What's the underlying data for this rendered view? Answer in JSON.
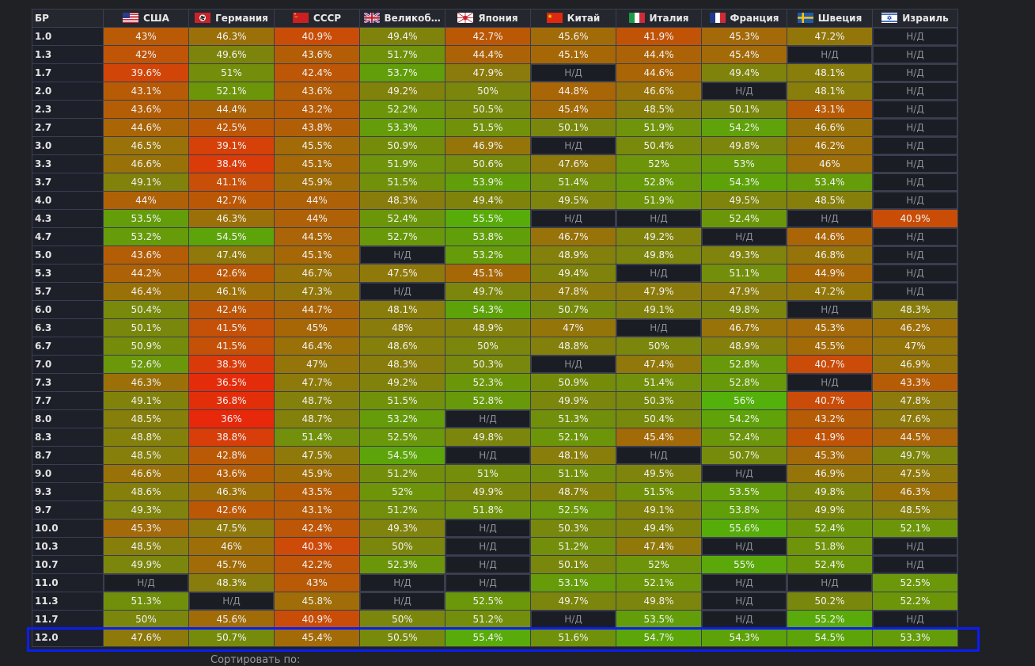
{
  "table": {
    "br_header": "БР",
    "na_text": "Н/Д",
    "countries": [
      {
        "name": "США",
        "flag": "usa-flag-icon"
      },
      {
        "name": "Германия",
        "flag": "germany-flag-icon"
      },
      {
        "name": "СССР",
        "flag": "ussr-flag-icon"
      },
      {
        "name": "Великобритания",
        "flag": "uk-flag-icon"
      },
      {
        "name": "Япония",
        "flag": "japan-flag-icon"
      },
      {
        "name": "Китай",
        "flag": "china-flag-icon"
      },
      {
        "name": "Италия",
        "flag": "italy-flag-icon"
      },
      {
        "name": "Франция",
        "flag": "france-flag-icon"
      },
      {
        "name": "Швеция",
        "flag": "sweden-flag-icon"
      },
      {
        "name": "Израиль",
        "flag": "israel-flag-icon"
      }
    ],
    "rows": [
      {
        "br": "1.0",
        "values": [
          "43%",
          "46.3%",
          "40.9%",
          "49.4%",
          "42.7%",
          "45.6%",
          "41.9%",
          "45.3%",
          "47.2%",
          "Н/Д"
        ]
      },
      {
        "br": "1.3",
        "values": [
          "42%",
          "49.6%",
          "43.6%",
          "51.7%",
          "44.4%",
          "45.1%",
          "44.4%",
          "45.4%",
          "Н/Д",
          "Н/Д"
        ]
      },
      {
        "br": "1.7",
        "values": [
          "39.6%",
          "51%",
          "42.4%",
          "53.7%",
          "47.9%",
          "Н/Д",
          "44.6%",
          "49.4%",
          "48.1%",
          "Н/Д"
        ]
      },
      {
        "br": "2.0",
        "values": [
          "43.1%",
          "52.1%",
          "43.6%",
          "49.2%",
          "50%",
          "44.8%",
          "46.6%",
          "Н/Д",
          "48.1%",
          "Н/Д"
        ]
      },
      {
        "br": "2.3",
        "values": [
          "43.6%",
          "44.4%",
          "43.2%",
          "52.2%",
          "50.5%",
          "45.4%",
          "48.5%",
          "50.1%",
          "43.1%",
          "Н/Д"
        ]
      },
      {
        "br": "2.7",
        "values": [
          "44.6%",
          "42.5%",
          "43.8%",
          "53.3%",
          "51.5%",
          "50.1%",
          "51.9%",
          "54.2%",
          "46.6%",
          "Н/Д"
        ]
      },
      {
        "br": "3.0",
        "values": [
          "46.5%",
          "39.1%",
          "45.5%",
          "50.9%",
          "46.9%",
          "Н/Д",
          "50.4%",
          "49.8%",
          "46.2%",
          "Н/Д"
        ]
      },
      {
        "br": "3.3",
        "values": [
          "46.6%",
          "38.4%",
          "45.1%",
          "51.9%",
          "50.6%",
          "47.6%",
          "52%",
          "53%",
          "46%",
          "Н/Д"
        ]
      },
      {
        "br": "3.7",
        "values": [
          "49.1%",
          "41.1%",
          "45.9%",
          "51.5%",
          "53.9%",
          "51.4%",
          "52.8%",
          "54.3%",
          "53.4%",
          "Н/Д"
        ]
      },
      {
        "br": "4.0",
        "values": [
          "44%",
          "42.7%",
          "44%",
          "48.3%",
          "49.4%",
          "49.5%",
          "51.9%",
          "49.5%",
          "48.5%",
          "Н/Д"
        ]
      },
      {
        "br": "4.3",
        "values": [
          "53.5%",
          "46.3%",
          "44%",
          "52.4%",
          "55.5%",
          "Н/Д",
          "Н/Д",
          "52.4%",
          "Н/Д",
          "40.9%"
        ]
      },
      {
        "br": "4.7",
        "values": [
          "53.2%",
          "54.5%",
          "44.5%",
          "52.7%",
          "53.8%",
          "46.7%",
          "49.2%",
          "Н/Д",
          "44.6%",
          "Н/Д"
        ]
      },
      {
        "br": "5.0",
        "values": [
          "43.6%",
          "47.4%",
          "45.1%",
          "Н/Д",
          "53.2%",
          "48.9%",
          "49.8%",
          "49.3%",
          "46.8%",
          "Н/Д"
        ]
      },
      {
        "br": "5.3",
        "values": [
          "44.2%",
          "42.6%",
          "46.7%",
          "47.5%",
          "45.1%",
          "49.4%",
          "Н/Д",
          "51.1%",
          "44.9%",
          "Н/Д"
        ]
      },
      {
        "br": "5.7",
        "values": [
          "46.4%",
          "46.1%",
          "47.3%",
          "Н/Д",
          "49.7%",
          "47.8%",
          "47.9%",
          "47.9%",
          "47.2%",
          "Н/Д"
        ]
      },
      {
        "br": "6.0",
        "values": [
          "50.4%",
          "42.4%",
          "44.7%",
          "48.1%",
          "54.3%",
          "50.7%",
          "49.1%",
          "49.8%",
          "Н/Д",
          "48.3%"
        ]
      },
      {
        "br": "6.3",
        "values": [
          "50.1%",
          "41.5%",
          "45%",
          "48%",
          "48.9%",
          "47%",
          "Н/Д",
          "46.7%",
          "45.3%",
          "46.2%"
        ]
      },
      {
        "br": "6.7",
        "values": [
          "50.9%",
          "41.5%",
          "46.4%",
          "48.6%",
          "50%",
          "48.8%",
          "50%",
          "48.9%",
          "45.5%",
          "47%"
        ]
      },
      {
        "br": "7.0",
        "values": [
          "52.6%",
          "38.3%",
          "47%",
          "48.3%",
          "50.3%",
          "Н/Д",
          "47.4%",
          "52.8%",
          "40.7%",
          "46.9%"
        ]
      },
      {
        "br": "7.3",
        "values": [
          "46.3%",
          "36.5%",
          "47.7%",
          "49.2%",
          "52.3%",
          "50.9%",
          "51.4%",
          "52.8%",
          "Н/Д",
          "43.3%"
        ]
      },
      {
        "br": "7.7",
        "values": [
          "49.1%",
          "36.8%",
          "48.7%",
          "51.5%",
          "52.8%",
          "49.9%",
          "50.3%",
          "56%",
          "40.7%",
          "47.8%"
        ]
      },
      {
        "br": "8.0",
        "values": [
          "48.5%",
          "36%",
          "48.7%",
          "53.2%",
          "Н/Д",
          "51.3%",
          "50.4%",
          "54.2%",
          "43.2%",
          "47.6%"
        ]
      },
      {
        "br": "8.3",
        "values": [
          "48.8%",
          "38.8%",
          "51.4%",
          "52.5%",
          "49.8%",
          "52.1%",
          "45.4%",
          "52.4%",
          "41.9%",
          "44.5%"
        ]
      },
      {
        "br": "8.7",
        "values": [
          "48.5%",
          "42.8%",
          "47.5%",
          "54.5%",
          "Н/Д",
          "48.1%",
          "Н/Д",
          "50.7%",
          "45.3%",
          "49.7%"
        ]
      },
      {
        "br": "9.0",
        "values": [
          "46.6%",
          "43.6%",
          "45.9%",
          "51.2%",
          "51%",
          "51.1%",
          "49.5%",
          "Н/Д",
          "46.9%",
          "47.5%"
        ]
      },
      {
        "br": "9.3",
        "values": [
          "48.6%",
          "46.3%",
          "43.5%",
          "52%",
          "49.9%",
          "48.7%",
          "51.5%",
          "53.5%",
          "49.8%",
          "46.3%"
        ]
      },
      {
        "br": "9.7",
        "values": [
          "49.3%",
          "42.6%",
          "43.1%",
          "51.2%",
          "51.8%",
          "52.5%",
          "49.1%",
          "53.8%",
          "49.9%",
          "48.5%"
        ]
      },
      {
        "br": "10.0",
        "values": [
          "45.3%",
          "47.5%",
          "42.4%",
          "49.3%",
          "Н/Д",
          "50.3%",
          "49.4%",
          "55.6%",
          "52.4%",
          "52.1%"
        ]
      },
      {
        "br": "10.3",
        "values": [
          "48.5%",
          "46%",
          "40.3%",
          "50%",
          "Н/Д",
          "51.2%",
          "47.4%",
          "Н/Д",
          "51.8%",
          "Н/Д"
        ]
      },
      {
        "br": "10.7",
        "values": [
          "49.9%",
          "45.7%",
          "42.2%",
          "52.3%",
          "Н/Д",
          "50.1%",
          "52%",
          "55%",
          "52.4%",
          "Н/Д"
        ]
      },
      {
        "br": "11.0",
        "values": [
          "Н/Д",
          "48.3%",
          "43%",
          "Н/Д",
          "Н/Д",
          "53.1%",
          "52.1%",
          "Н/Д",
          "Н/Д",
          "52.5%"
        ]
      },
      {
        "br": "11.3",
        "values": [
          "51.3%",
          "Н/Д",
          "45.8%",
          "Н/Д",
          "52.5%",
          "49.7%",
          "49.8%",
          "Н/Д",
          "50.2%",
          "52.2%"
        ]
      },
      {
        "br": "11.7",
        "values": [
          "50%",
          "45.6%",
          "40.9%",
          "50%",
          "51.2%",
          "Н/Д",
          "53.5%",
          "Н/Д",
          "55.2%",
          "Н/Д"
        ]
      },
      {
        "br": "12.0",
        "values": [
          "47.6%",
          "50.7%",
          "45.4%",
          "50.5%",
          "55.4%",
          "51.6%",
          "54.7%",
          "54.3%",
          "54.5%",
          "53.3%"
        ]
      }
    ],
    "highlighted_row_br": "12.0",
    "highlight_color": "#0a1df5"
  },
  "footer": {
    "sort_label": "Сортировать по:"
  }
}
